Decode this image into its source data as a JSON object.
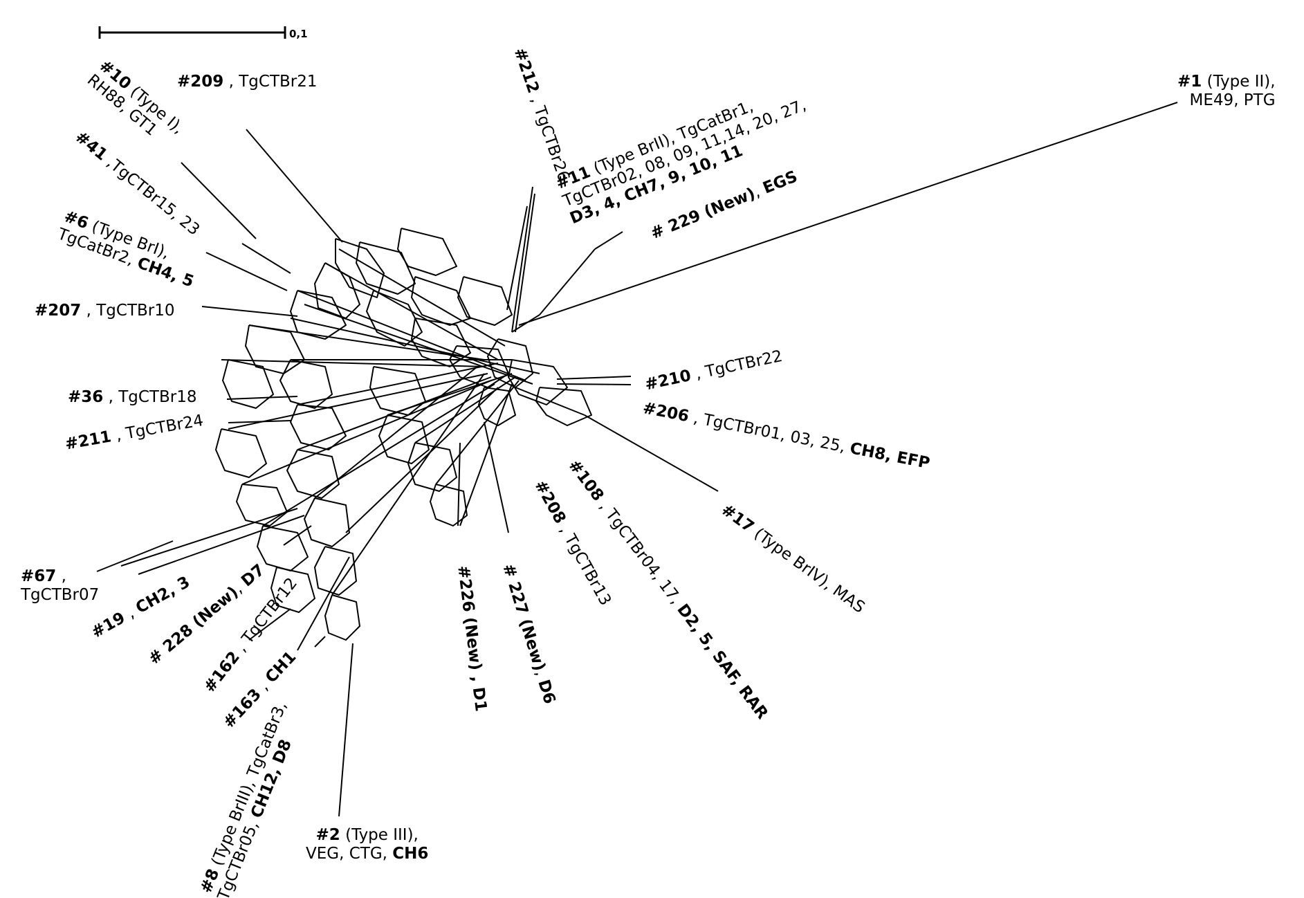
{
  "scale_bar": {
    "label": "0,1"
  },
  "taxa": [
    {
      "id": "t1",
      "lines": [
        [
          [
            "b",
            "#1"
          ],
          [
            "n",
            " (Type II),"
          ]
        ],
        [
          [
            "n",
            "ME49, PTG"
          ]
        ]
      ]
    },
    {
      "id": "t11",
      "lines": [
        [
          [
            "b",
            "#11"
          ],
          [
            "n",
            " (Type BrII), TgCatBr1,"
          ]
        ],
        [
          [
            "n",
            "TgCTBr02, 08, 09, 11,14, 20, 27,"
          ]
        ],
        [
          [
            "b",
            "D3, 4, CH7, 9, 10, 11"
          ]
        ]
      ]
    },
    {
      "id": "t212",
      "lines": [
        [
          [
            "b",
            "#212"
          ],
          [
            "n",
            " , TgCTBr26"
          ]
        ]
      ]
    },
    {
      "id": "t209",
      "lines": [
        [
          [
            "b",
            "#209"
          ],
          [
            "n",
            " , TgCTBr21"
          ]
        ]
      ]
    },
    {
      "id": "t10",
      "lines": [
        [
          [
            "b",
            "#10"
          ],
          [
            "n",
            " (Type I),"
          ]
        ],
        [
          [
            "n",
            "RH88, GT1"
          ]
        ]
      ]
    },
    {
      "id": "t41",
      "lines": [
        [
          [
            "b",
            "#41"
          ],
          [
            "n",
            " ,TgCTBr15, 23"
          ]
        ]
      ]
    },
    {
      "id": "t6",
      "lines": [
        [
          [
            "b",
            "#6"
          ],
          [
            "n",
            " (Type BrI),"
          ]
        ],
        [
          [
            "n",
            "TgCatBr2, "
          ],
          [
            "b",
            "CH4, 5"
          ]
        ]
      ]
    },
    {
      "id": "t207",
      "lines": [
        [
          [
            "b",
            "#207"
          ],
          [
            "n",
            " , TgCTBr10"
          ]
        ]
      ]
    },
    {
      "id": "t229",
      "lines": [
        [
          [
            "b",
            "# 229 (New)"
          ],
          [
            "n",
            ", "
          ],
          [
            "b",
            "EGS"
          ]
        ]
      ]
    },
    {
      "id": "t210",
      "lines": [
        [
          [
            "b",
            "#210"
          ],
          [
            "n",
            " , TgCTBr22"
          ]
        ]
      ]
    },
    {
      "id": "t206",
      "lines": [
        [
          [
            "b",
            "#206"
          ],
          [
            "n",
            " , TgCTBr01, 03, 25, "
          ],
          [
            "b",
            "CH8, EFP"
          ]
        ]
      ]
    },
    {
      "id": "t36",
      "lines": [
        [
          [
            "b",
            "#36"
          ],
          [
            "n",
            " , TgCTBr18"
          ]
        ]
      ]
    },
    {
      "id": "t211",
      "lines": [
        [
          [
            "b",
            "#211"
          ],
          [
            "n",
            " , TgCTBr24"
          ]
        ]
      ]
    },
    {
      "id": "t17",
      "lines": [
        [
          [
            "b",
            "#17"
          ],
          [
            "n",
            " (Type BrIV), MAS"
          ]
        ]
      ]
    },
    {
      "id": "t108",
      "lines": [
        [
          [
            "b",
            "#108"
          ],
          [
            "n",
            " , TgCTBr04, 17, "
          ],
          [
            "b",
            "D2, 5, SAF, RAR"
          ]
        ]
      ]
    },
    {
      "id": "t208",
      "lines": [
        [
          [
            "b",
            "#208"
          ],
          [
            "n",
            " , TgCTBr13"
          ]
        ]
      ]
    },
    {
      "id": "t227",
      "lines": [
        [
          [
            "b",
            "# 227 (New)"
          ],
          [
            "n",
            ", "
          ],
          [
            "b",
            "D6"
          ]
        ]
      ]
    },
    {
      "id": "t226",
      "lines": [
        [
          [
            "b",
            "#226 (New) , D1"
          ]
        ]
      ]
    },
    {
      "id": "t67",
      "lines": [
        [
          [
            "b",
            "#67"
          ],
          [
            "n",
            " ,"
          ]
        ],
        [
          [
            "n",
            "TgCTBr07"
          ]
        ]
      ]
    },
    {
      "id": "t19",
      "lines": [
        [
          [
            "b",
            "#19"
          ],
          [
            "n",
            " , "
          ],
          [
            "b",
            "CH2, 3"
          ]
        ]
      ]
    },
    {
      "id": "t228",
      "lines": [
        [
          [
            "b",
            "# 228 (New)"
          ],
          [
            "n",
            ", "
          ],
          [
            "b",
            "D7"
          ]
        ]
      ]
    },
    {
      "id": "t162",
      "lines": [
        [
          [
            "b",
            "#162"
          ],
          [
            "n",
            " , TgCTBr12"
          ]
        ]
      ]
    },
    {
      "id": "t163",
      "lines": [
        [
          [
            "b",
            "#163"
          ],
          [
            "n",
            " , "
          ],
          [
            "b",
            "CH1"
          ]
        ]
      ]
    },
    {
      "id": "t8",
      "lines": [
        [
          [
            "b",
            "#8"
          ],
          [
            "n",
            " (Type BrIII), TgCatBr3,"
          ]
        ],
        [
          [
            "n",
            "TgCTBr05, "
          ],
          [
            "b",
            "CH12, D8"
          ]
        ]
      ]
    },
    {
      "id": "t2",
      "lines": [
        [
          [
            "b",
            "#2"
          ],
          [
            "n",
            " (Type III),"
          ]
        ],
        [
          [
            "n",
            "VEG, CTG, "
          ],
          [
            "b",
            "CH6"
          ]
        ]
      ]
    }
  ]
}
